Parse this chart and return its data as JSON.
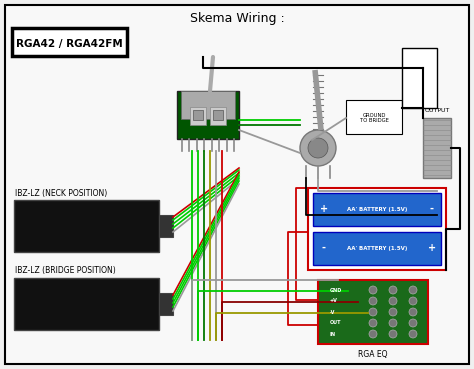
{
  "title": "Skema Wiring :",
  "title_fontsize": 9,
  "bg_color": "#f0f0f0",
  "border_color": "#000000",
  "label_rga": "RGA42 / RGA42FM",
  "label_neck": "IBZ-LZ (NECK POSITION)",
  "label_bridge": "IBZ-LZ (BRIDGE POSITION)",
  "label_battery1": "AA' BATTERY (1.5V)",
  "label_battery2": "AA' BATTERY (1.5V)",
  "label_eq": "RGA EQ",
  "label_ground": "GROUND\nTO BRIDGE",
  "label_output": "OUTPUT",
  "green_color": "#00cc00",
  "red_color": "#cc0000",
  "gray_color": "#999999",
  "black_color": "#000000",
  "dark_green": "#007700",
  "olive_color": "#999900",
  "darkred_color": "#880000"
}
